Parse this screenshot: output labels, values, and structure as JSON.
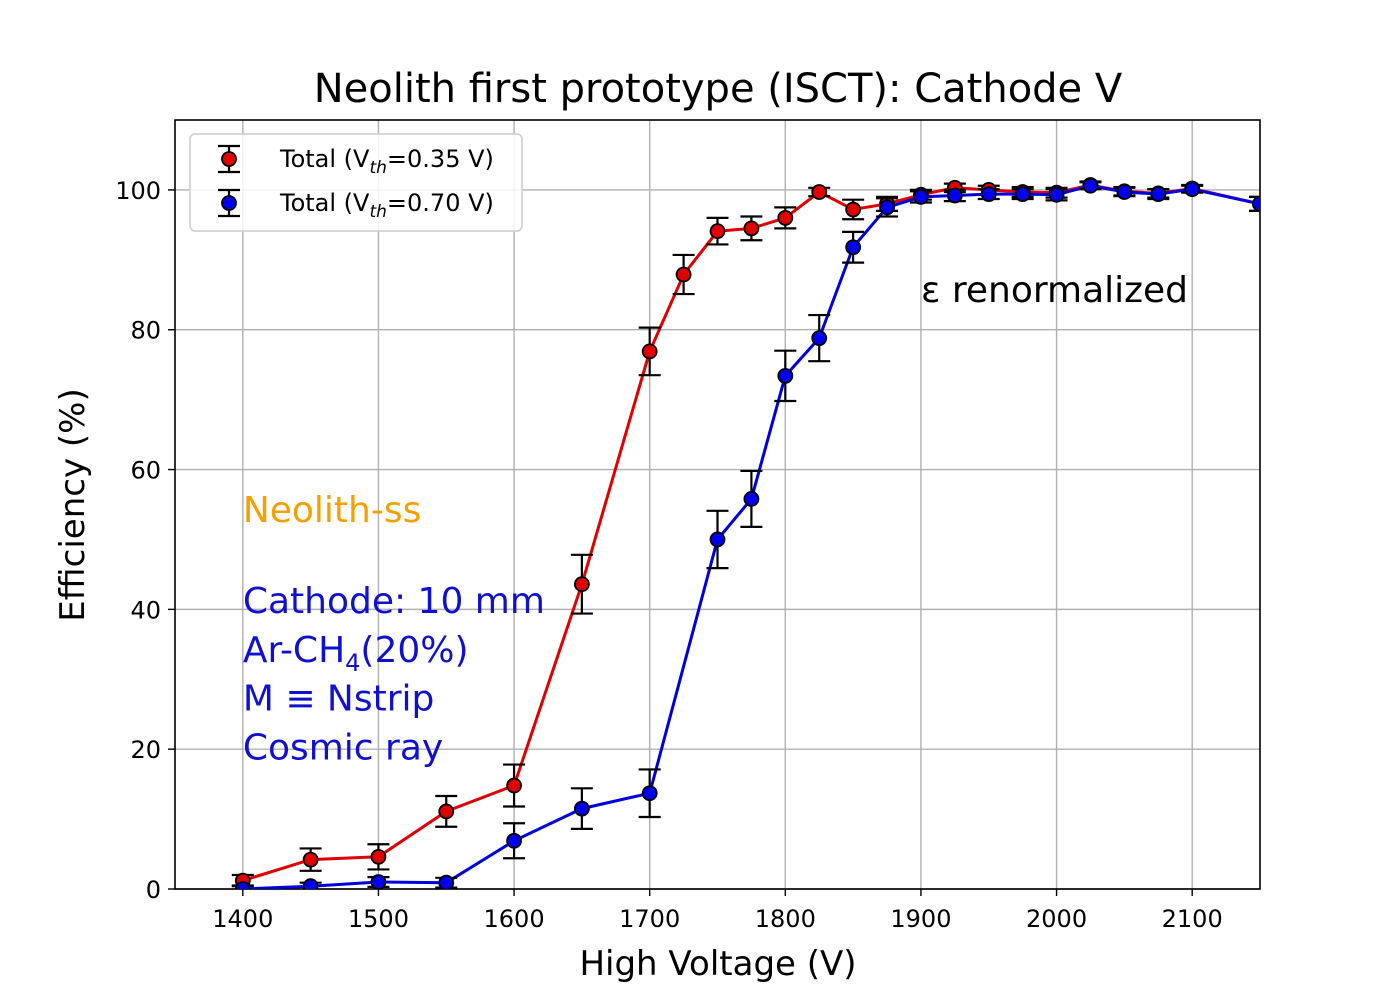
{
  "chart_data": {
    "type": "line",
    "title": "Neolith first prototype (ISCT): Cathode V",
    "xlabel": "High Voltage (V)",
    "ylabel": "Efficiency (%)",
    "xlim": [
      1350,
      2150
    ],
    "ylim": [
      0,
      110
    ],
    "xticks": [
      1400,
      1500,
      1600,
      1700,
      1800,
      1900,
      2000,
      2100
    ],
    "yticks": [
      0,
      20,
      40,
      60,
      80,
      100
    ],
    "grid": true,
    "legend_position": "top-left",
    "series": [
      {
        "name": "Total (V",
        "name_sub": "th",
        "name_tail": "=0.35 V)",
        "color": "#e00000",
        "marker_color": "#e00000",
        "x": [
          1400,
          1450,
          1500,
          1550,
          1600,
          1650,
          1700,
          1725,
          1750,
          1775,
          1800,
          1825,
          1850,
          1875,
          1900,
          1925,
          1950,
          1975,
          2000,
          2025,
          2050,
          2075,
          2100,
          2150
        ],
        "y": [
          1.2,
          4.2,
          4.6,
          11.1,
          14.8,
          43.6,
          76.9,
          87.9,
          94.1,
          94.5,
          96.0,
          99.7,
          97.2,
          98.0,
          99.3,
          100.3,
          100.0,
          99.7,
          99.6,
          100.7,
          99.8,
          99.5,
          100.2,
          98.0
        ],
        "err": [
          0.8,
          1.6,
          1.8,
          2.2,
          3.0,
          4.2,
          3.4,
          2.8,
          1.9,
          1.7,
          1.5,
          0.6,
          1.4,
          1.0,
          0.7,
          0.6,
          0.6,
          0.7,
          0.7,
          0.5,
          0.6,
          0.6,
          0.5,
          1.0
        ]
      },
      {
        "name": "Total (V",
        "name_sub": "th",
        "name_tail": "=0.70 V)",
        "color": "#0000dd",
        "marker_color": "#0000ee",
        "x": [
          1400,
          1450,
          1500,
          1550,
          1600,
          1650,
          1700,
          1750,
          1775,
          1800,
          1825,
          1850,
          1875,
          1900,
          1925,
          1950,
          1975,
          2000,
          2025,
          2050,
          2075,
          2100,
          2150
        ],
        "y": [
          0.0,
          0.4,
          1.0,
          0.9,
          6.9,
          11.5,
          13.7,
          50.0,
          55.8,
          73.4,
          78.8,
          91.8,
          97.5,
          99.0,
          99.2,
          99.4,
          99.4,
          99.3,
          100.6,
          99.7,
          99.4,
          100.1,
          98.0
        ],
        "err": [
          0.5,
          0.5,
          0.7,
          0.7,
          2.5,
          2.9,
          3.4,
          4.1,
          4.0,
          3.6,
          3.3,
          2.2,
          1.3,
          0.8,
          0.8,
          0.7,
          0.7,
          0.8,
          0.5,
          0.6,
          0.7,
          0.5,
          1.0
        ]
      }
    ],
    "annotations": [
      {
        "id": "renorm",
        "text": "ε renormalized",
        "x": 1900,
        "y": 84,
        "color": "#000000"
      },
      {
        "id": "neolith",
        "text": "Neolith-ss",
        "x": 1400,
        "y": 52.5,
        "color": "#f5a000"
      },
      {
        "id": "cathode",
        "text": "Cathode: 10 mm",
        "x": 1400,
        "y": 39.5,
        "color": "#1010d0"
      },
      {
        "id": "gas",
        "text": "Ar-CH",
        "sub": "4",
        "tail": "(20%)",
        "x": 1400,
        "y": 32.5,
        "color": "#1010d0"
      },
      {
        "id": "mdef",
        "text": "M ≡ Nstrip",
        "x": 1400,
        "y": 25.5,
        "color": "#1010d0"
      },
      {
        "id": "cosmic",
        "text": "Cosmic ray",
        "x": 1400,
        "y": 18.5,
        "color": "#1010d0"
      }
    ]
  }
}
